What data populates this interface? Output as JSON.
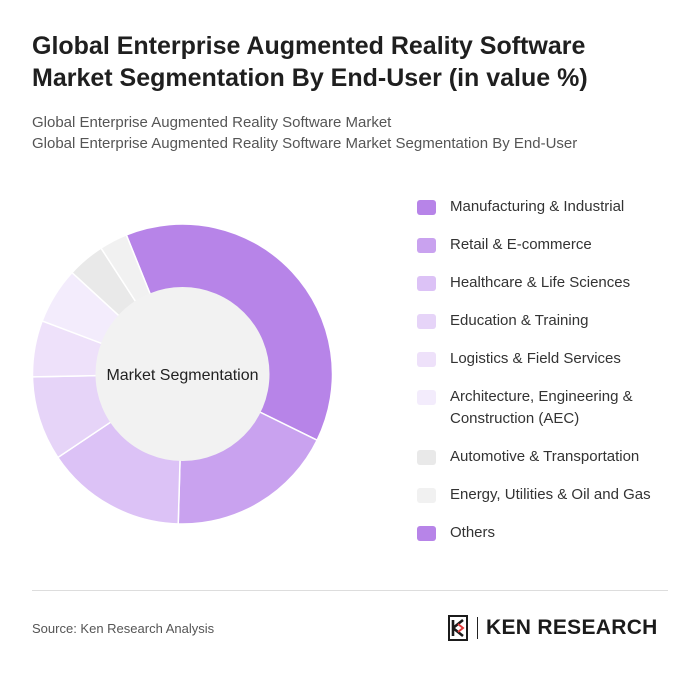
{
  "header": {
    "title": "Global Enterprise Augmented Reality Software Market Segmentation By End-User (in value %)",
    "subtitle_line1": "Global Enterprise Augmented Reality Software Market",
    "subtitle_line2": "Global Enterprise Augmented Reality Software Market Segmentation By End-User"
  },
  "chart_data": {
    "type": "pie",
    "center_label": "Market Segmentation",
    "categories": [
      "Manufacturing & Industrial",
      "Retail & E-commerce",
      "Healthcare & Life Sciences",
      "Education & Training",
      "Logistics & Field Services",
      "Architecture, Engineering & Construction (AEC)",
      "Automotive & Transportation",
      "Energy, Utilities & Oil and Gas",
      "Others"
    ],
    "values": [
      38,
      18,
      15,
      9,
      6,
      6,
      4,
      3,
      0
    ],
    "colors": [
      "#b784e8",
      "#c9a2ef",
      "#dcc2f6",
      "#e6d4f8",
      "#eee1fa",
      "#f3ecfc",
      "#e9e9e9",
      "#f1f1f1",
      "#b784e8"
    ],
    "legend_position": "right"
  },
  "footer": {
    "source": "Source: Ken Research Analysis",
    "logo_text": "KEN RESEARCH"
  }
}
